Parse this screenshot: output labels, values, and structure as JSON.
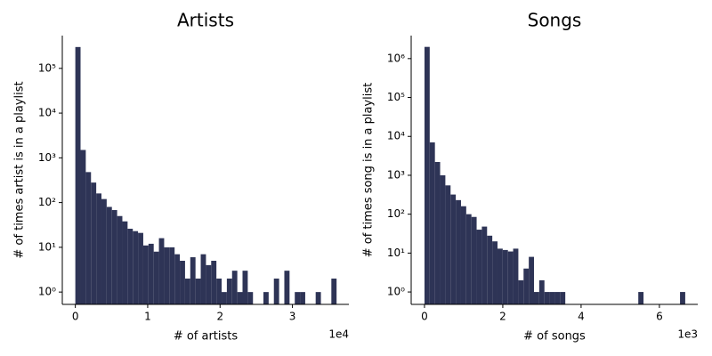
{
  "chart_data": [
    {
      "type": "histogram",
      "title": "Artists",
      "xlabel": "# of artists",
      "ylabel": "# of times artist is in a playlist",
      "x_offset_label": "1e4",
      "color": "#2e3456",
      "log_y": true,
      "bins": [
        0,
        722,
        1444,
        2166,
        2888,
        3610,
        4332,
        5054,
        5776,
        6498,
        7220,
        7942,
        8664,
        9386,
        10108,
        10830,
        11552,
        12274,
        12996,
        13718,
        14440,
        15162,
        15884,
        16606,
        17328,
        18050,
        18772,
        19494,
        20216,
        20938,
        21660,
        22382,
        23104,
        23826,
        24548,
        25270,
        25992,
        26714,
        27436,
        28158,
        28880,
        29602,
        30324,
        31046,
        31768,
        32490,
        33212,
        33934,
        34656,
        35378,
        36100
      ],
      "values": [
        300000,
        1500,
        480,
        280,
        160,
        120,
        80,
        68,
        50,
        38,
        26,
        23,
        21,
        11,
        12,
        8,
        16,
        10,
        10,
        7,
        5,
        2,
        6,
        2,
        7,
        4,
        5,
        2,
        1,
        2,
        3,
        1,
        3,
        1,
        0,
        0,
        1,
        0,
        2,
        0,
        3,
        0,
        1,
        1,
        0,
        0,
        1,
        0,
        0,
        2
      ],
      "xlim": [
        -1800,
        37800
      ],
      "xticks": [
        0,
        {
          "value": 10000,
          "label": "1"
        },
        {
          "value": 20000,
          "label": "2"
        },
        {
          "value": 30000,
          "label": "3"
        }
      ],
      "ylim": [
        0.53,
        540000
      ],
      "yticks": [
        {
          "value": 1,
          "label": "10⁰"
        },
        {
          "value": 10,
          "label": "10¹"
        },
        {
          "value": 100,
          "label": "10²"
        },
        {
          "value": 1000,
          "label": "10³"
        },
        {
          "value": 10000,
          "label": "10⁴"
        },
        {
          "value": 100000,
          "label": "10⁵"
        }
      ]
    },
    {
      "type": "histogram",
      "title": "Songs",
      "xlabel": "# of songs",
      "ylabel": "# of times song is in a playlist",
      "x_offset_label": "1e3",
      "color": "#2e3456",
      "log_y": true,
      "bins": [
        0,
        133.2,
        266.4,
        399.6,
        532.8,
        666,
        799.2,
        932.4,
        1065.6,
        1198.8,
        1332,
        1465.2,
        1598.4,
        1731.6,
        1864.8,
        1998,
        2131.2,
        2264.4,
        2397.6,
        2530.8,
        2664,
        2797.2,
        2930.4,
        3063.6,
        3196.8,
        3330,
        3463.2,
        3596.4,
        3729.6,
        3862.8,
        3996,
        4129.2,
        4262.4,
        4395.6,
        4528.8,
        4662,
        4795.2,
        4928.4,
        5061.6,
        5194.8,
        5328,
        5461.2,
        5594.4,
        5727.6,
        5860.8,
        5994,
        6127.2,
        6260.4,
        6393.6,
        6526.8,
        6660
      ],
      "values": [
        2000000,
        7000,
        2200,
        1000,
        550,
        320,
        230,
        160,
        100,
        85,
        40,
        48,
        28,
        20,
        13,
        12,
        11,
        13,
        2,
        4,
        8,
        1,
        2,
        1,
        1,
        1,
        1,
        0,
        0,
        0,
        0,
        0,
        0,
        0,
        0,
        0,
        0,
        0,
        0,
        0,
        0,
        1,
        0,
        0,
        0,
        0,
        0,
        0,
        0,
        1
      ],
      "xlim": [
        -340,
        6980
      ],
      "xticks": [
        0,
        {
          "value": 2000,
          "label": "2"
        },
        {
          "value": 4000,
          "label": "4"
        },
        {
          "value": 6000,
          "label": "6"
        }
      ],
      "ylim": [
        0.48,
        3900000
      ],
      "yticks": [
        {
          "value": 1,
          "label": "10⁰"
        },
        {
          "value": 10,
          "label": "10¹"
        },
        {
          "value": 100,
          "label": "10²"
        },
        {
          "value": 1000,
          "label": "10³"
        },
        {
          "value": 10000,
          "label": "10⁴"
        },
        {
          "value": 100000,
          "label": "10⁵"
        },
        {
          "value": 1000000,
          "label": "10⁶"
        }
      ]
    }
  ]
}
